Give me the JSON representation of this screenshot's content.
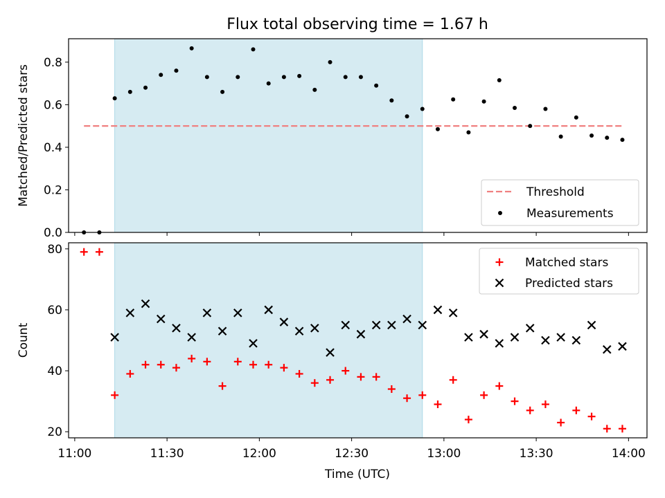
{
  "title": "Flux total observing time = 1.67 h",
  "xlabel": "Time (UTC)",
  "colors": {
    "threshold": "#f08080",
    "measurements": "#000000",
    "matched": "#ff0000",
    "predicted": "#000000",
    "shade": "#add8e6"
  },
  "chart_data": [
    {
      "type": "scatter",
      "ylabel": "Matched/Predicted stars",
      "xlim": [
        "10:58",
        "14:06"
      ],
      "ylim": [
        0,
        0.91
      ],
      "yticks": [
        "0.0",
        "0.2",
        "0.4",
        "0.6",
        "0.8"
      ],
      "shaded_interval": [
        "11:13",
        "12:53"
      ],
      "legend": {
        "placement": "lower right",
        "entries": [
          "Threshold",
          "Measurements"
        ]
      },
      "threshold": {
        "name": "Threshold",
        "x": [
          "11:03",
          "13:58"
        ],
        "y": 0.5
      },
      "series": [
        {
          "name": "Measurements",
          "x": [
            "11:03",
            "11:08",
            "11:13",
            "11:18",
            "11:23",
            "11:28",
            "11:33",
            "11:38",
            "11:43",
            "11:48",
            "11:53",
            "11:58",
            "12:03",
            "12:08",
            "12:13",
            "12:18",
            "12:23",
            "12:28",
            "12:33",
            "12:38",
            "12:43",
            "12:48",
            "12:53",
            "12:58",
            "13:03",
            "13:08",
            "13:13",
            "13:18",
            "13:23",
            "13:28",
            "13:33",
            "13:38",
            "13:43",
            "13:48",
            "13:53",
            "13:58"
          ],
          "y": [
            0,
            0,
            0.63,
            0.66,
            0.68,
            0.74,
            0.76,
            0.865,
            0.73,
            0.66,
            0.73,
            0.86,
            0.7,
            0.73,
            0.735,
            0.67,
            0.8,
            0.73,
            0.73,
            0.69,
            0.62,
            0.545,
            0.58,
            0.485,
            0.625,
            0.47,
            0.615,
            0.715,
            0.585,
            0.5,
            0.58,
            0.45,
            0.54,
            0.455,
            0.445,
            0.435
          ]
        }
      ]
    },
    {
      "type": "scatter",
      "ylabel": "Count",
      "xlim": [
        "10:58",
        "14:06"
      ],
      "ylim": [
        18,
        82
      ],
      "yticks": [
        "20",
        "40",
        "60",
        "80"
      ],
      "xticks": [
        "11:00",
        "11:30",
        "12:00",
        "12:30",
        "13:00",
        "13:30",
        "14:00"
      ],
      "shaded_interval": [
        "11:13",
        "12:53"
      ],
      "legend": {
        "placement": "upper right",
        "entries": [
          "Matched stars",
          "Predicted stars"
        ]
      },
      "x": [
        "11:03",
        "11:08",
        "11:13",
        "11:18",
        "11:23",
        "11:28",
        "11:33",
        "11:38",
        "11:43",
        "11:48",
        "11:53",
        "11:58",
        "12:03",
        "12:08",
        "12:13",
        "12:18",
        "12:23",
        "12:28",
        "12:33",
        "12:38",
        "12:43",
        "12:48",
        "12:53",
        "12:58",
        "13:03",
        "13:08",
        "13:13",
        "13:18",
        "13:23",
        "13:28",
        "13:33",
        "13:38",
        "13:43",
        "13:48",
        "13:53",
        "13:58"
      ],
      "series": [
        {
          "name": "Matched stars",
          "marker": "plus",
          "values": [
            79,
            79,
            32,
            39,
            42,
            42,
            41,
            44,
            43,
            35,
            43,
            42,
            42,
            41,
            39,
            36,
            37,
            40,
            38,
            38,
            34,
            31,
            32,
            29,
            37,
            24,
            32,
            35,
            30,
            27,
            29,
            23,
            27,
            25,
            21,
            21
          ]
        },
        {
          "name": "Predicted stars",
          "marker": "x",
          "values": [
            null,
            null,
            51,
            59,
            62,
            57,
            54,
            51,
            59,
            53,
            59,
            49,
            60,
            56,
            53,
            54,
            46,
            55,
            52,
            55,
            55,
            57,
            55,
            60,
            59,
            51,
            52,
            49,
            51,
            54,
            50,
            51,
            50,
            55,
            47,
            48
          ]
        }
      ]
    }
  ]
}
